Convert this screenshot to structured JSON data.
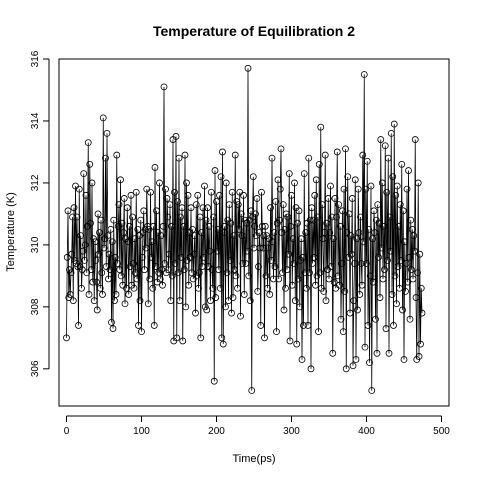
{
  "chart_data": {
    "type": "line",
    "title": "Temperature of Equilibration 2",
    "xlabel": "Time(ps)",
    "ylabel": "Temperature (K)",
    "xlim": [
      -10,
      510
    ],
    "ylim": [
      304.8,
      316.0
    ],
    "x_ticks": [
      "0",
      "100",
      "200",
      "300",
      "400",
      "500"
    ],
    "y_ticks": [
      "306",
      "308",
      "310",
      "312",
      "314",
      "316"
    ],
    "marker": "open-circle",
    "line_color": "#000000",
    "series": [
      {
        "x_start": 0,
        "x_step": 1,
        "values": [
          307.0,
          309.6,
          311.1,
          308.3,
          309.2,
          308.4,
          309.1,
          309.7,
          310.9,
          308.2,
          311.2,
          309.5,
          311.9,
          309.4,
          310.9,
          309.3,
          307.4,
          311.8,
          309.3,
          310.3,
          308.6,
          309.2,
          309.8,
          312.3,
          309.5,
          310.0,
          311.6,
          309.1,
          310.6,
          313.3,
          308.4,
          312.6,
          310.7,
          309.2,
          312.0,
          308.8,
          310.2,
          308.2,
          310.1,
          309.5,
          308.8,
          307.9,
          311.0,
          309.7,
          310.4,
          308.6,
          310.8,
          309.1,
          308.4,
          314.1,
          309.9,
          310.2,
          312.8,
          309.3,
          313.6,
          310.3,
          308.9,
          309.7,
          309.2,
          310.5,
          307.5,
          310.1,
          307.3,
          310.8,
          308.2,
          309.6,
          308.4,
          312.9,
          309.4,
          310.6,
          311.3,
          309.2,
          312.1,
          309.0,
          310.7,
          308.7,
          310.4,
          311.5,
          308.1,
          310.2,
          308.6,
          311.2,
          310.1,
          308.4,
          310.6,
          309.3,
          311.6,
          308.7,
          310.9,
          309.4,
          308.6,
          310.2,
          309.1,
          311.7,
          308.9,
          310.5,
          307.4,
          310.3,
          308.2,
          310.8,
          307.2,
          309.6,
          310.4,
          311.1,
          309.2,
          310.5,
          309.9,
          311.8,
          310.6,
          308.1,
          310.5,
          308.9,
          311.7,
          309.6,
          310.1,
          308.6,
          310.6,
          307.4,
          312.5,
          309.3,
          311.1,
          308.8,
          310.4,
          309.1,
          312.0,
          308.9,
          310.3,
          309.2,
          308.7,
          310.6,
          315.1,
          309.4,
          311.8,
          309.1,
          311.5,
          310.9,
          309.2,
          309.7,
          311.3,
          308.2,
          310.6,
          309.0,
          313.4,
          306.9,
          311.7,
          309.4,
          313.5,
          307.0,
          311.4,
          309.1,
          312.8,
          308.2,
          310.9,
          309.6,
          311.2,
          306.9,
          310.6,
          309.2,
          312.9,
          308.0,
          312.0,
          309.5,
          311.6,
          308.7,
          310.4,
          309.6,
          311.2,
          309.1,
          310.5,
          308.9,
          309.7,
          310.3,
          307.8,
          311.3,
          309.0,
          311.6,
          308.6,
          309.1,
          310.9,
          307.0,
          310.4,
          309.3,
          311.2,
          309.6,
          311.9,
          308.0,
          310.8,
          307.9,
          311.2,
          309.3,
          310.6,
          309.8,
          308.2,
          311.7,
          309.2,
          308.6,
          310.9,
          305.6,
          312.4,
          308.3,
          311.4,
          309.8,
          310.5,
          309.2,
          311.6,
          308.6,
          312.2,
          307.0,
          313.0,
          306.8,
          310.4,
          310.6,
          308.0,
          312.0,
          309.1,
          310.8,
          308.2,
          311.3,
          309.5,
          310.7,
          307.8,
          311.7,
          308.3,
          310.3,
          309.2,
          312.9,
          309.0,
          311.4,
          308.6,
          311.3,
          310.5,
          311.7,
          307.7,
          311.0,
          310.3,
          309.4,
          311.6,
          308.4,
          310.8,
          309.4,
          310.7,
          309.8,
          315.7,
          309.0,
          310.8,
          308.2,
          311.1,
          305.3,
          310.9,
          312.2,
          309.9,
          310.6,
          311.0,
          310.3,
          311.5,
          308.5,
          309.3,
          310.4,
          309.9,
          307.4,
          311.7,
          310.6,
          309.9,
          310.3,
          307.0,
          310.6,
          309.0,
          310.3,
          308.6,
          309.9,
          310.2,
          308.4,
          311.2,
          309.5,
          312.8,
          310.1,
          308.9,
          310.4,
          309.3,
          311.4,
          307.2,
          310.7,
          312.1,
          308.9,
          310.8,
          311.8,
          313.1,
          310.4,
          309.1,
          311.3,
          307.9,
          310.5,
          308.6,
          311.0,
          309.2,
          310.9,
          309.7,
          312.3,
          306.9,
          310.6,
          311.6,
          308.7,
          310.2,
          309.4,
          312.0,
          308.2,
          311.2,
          306.8,
          310.7,
          308.9,
          311.1,
          308.0,
          309.5,
          310.2,
          306.3,
          309.6,
          307.4,
          312.3,
          309.1,
          310.4,
          308.6,
          310.7,
          307.4,
          312.8,
          309.1,
          310.8,
          306.0,
          311.2,
          309.4,
          310.8,
          309.6,
          311.6,
          308.7,
          312.1,
          309.0,
          310.9,
          307.2,
          312.6,
          309.1,
          313.8,
          308.6,
          311.3,
          310.2,
          308.5,
          310.4,
          312.9,
          308.2,
          310.7,
          309.2,
          311.5,
          308.9,
          310.4,
          311.9,
          309.3,
          310.9,
          306.5,
          310.2,
          308.8,
          311.5,
          308.6,
          310.9,
          313.0,
          309.0,
          311.3,
          308.7,
          310.6,
          307.6,
          309.4,
          311.1,
          307.2,
          311.8,
          308.5,
          313.1,
          306.0,
          310.4,
          312.2,
          309.6,
          311.0,
          307.8,
          310.3,
          309.7,
          311.5,
          306.1,
          308.2,
          309.4,
          312.1,
          306.3,
          310.2,
          307.9,
          311.8,
          310.4,
          308.4,
          310.9,
          309.4,
          308.7,
          312.9,
          310.1,
          315.5,
          306.7,
          311.8,
          309.4,
          312.7,
          307.4,
          310.5,
          306.2,
          309.0,
          311.9,
          305.3,
          310.2,
          308.8,
          311.1,
          310.4,
          307.6,
          310.8,
          306.5,
          311.3,
          309.6,
          310.7,
          308.3,
          313.4,
          309.9,
          312.0,
          308.9,
          310.6,
          309.2,
          313.2,
          307.3,
          311.7,
          309.5,
          312.8,
          306.5,
          310.9,
          309.8,
          313.6,
          308.4,
          312.2,
          307.4,
          313.9,
          309.0,
          311.6,
          308.1,
          311.9,
          309.3,
          310.6,
          308.6,
          311.3,
          309.5,
          312.6,
          307.9,
          311.1,
          306.3,
          310.1,
          308.5,
          309.4,
          311.8,
          308.8,
          312.4,
          309.6,
          307.6,
          310.8,
          309.2,
          310.5,
          308.9,
          310.3,
          309.8,
          313.4,
          308.3,
          306.3,
          309.1,
          312.0,
          306.4,
          309.7,
          306.8,
          308.6,
          307.8
        ]
      }
    ]
  }
}
